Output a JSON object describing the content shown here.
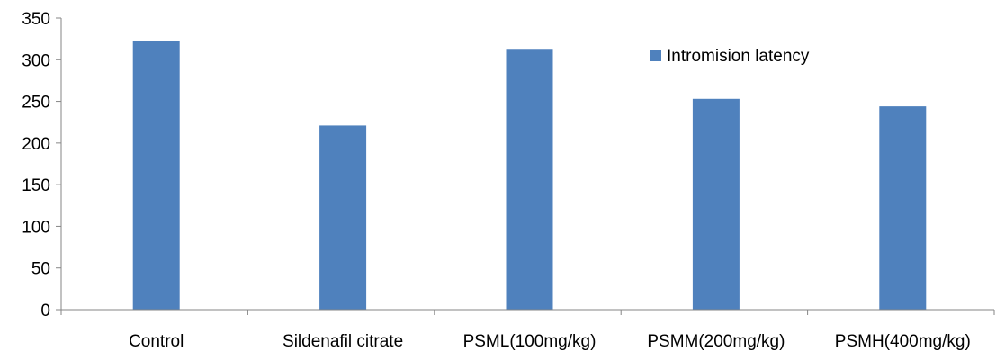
{
  "chart_data": {
    "type": "bar",
    "categories": [
      "Control",
      "Sildenafil citrate",
      "PSML(100mg/kg)",
      "PSMM(200mg/kg)",
      "PSMH(400mg/kg)"
    ],
    "series": [
      {
        "name": "Intromision latency",
        "values": [
          323,
          221,
          313,
          253,
          244
        ],
        "color": "#4F81BD"
      }
    ],
    "ylim": [
      0,
      350
    ],
    "yticks": [
      0,
      50,
      100,
      150,
      200,
      250,
      300,
      350
    ],
    "grid": false,
    "legend": "top-right"
  }
}
